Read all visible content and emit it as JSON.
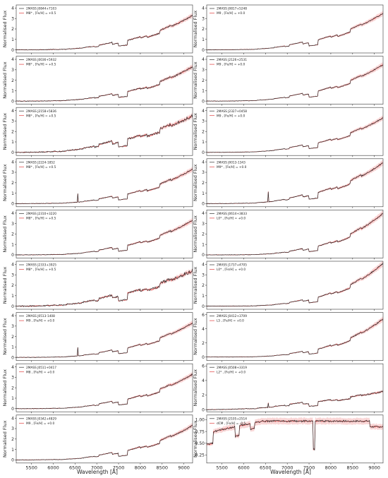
{
  "figure": {
    "xlabel": "Wavelength [Å]",
    "ylabel": "Normalised Flux"
  },
  "chart_data": {
    "type": "line",
    "x_range": [
      5150,
      9200
    ],
    "x_ticks": [
      5500,
      6000,
      6500,
      7000,
      7500,
      8000,
      8500,
      9000
    ],
    "x_tick_labels": [
      "5500",
      "6000",
      "6500",
      "7000",
      "7500",
      "8000",
      "8500",
      "9000"
    ],
    "grid": false,
    "legend_position": "top-left",
    "colors": {
      "observed": "#333333",
      "template": "#e03c3c",
      "template_band": "#f2a3a3"
    },
    "panels": [
      {
        "id": "p0",
        "object": "2MASS J0844+7103",
        "template": "M8* , [Fe/H] = +0.5",
        "ylim": [
          -0.3,
          4.3
        ],
        "yticks": [
          0,
          1,
          2,
          3,
          4
        ],
        "spectrum": {
          "c": "late",
          "scale": 3.3,
          "noise": 0.06
        }
      },
      {
        "id": "p1",
        "object": "2MASS J0817+5248",
        "template": "M9 , [Fe/H] = +0.0",
        "ylim": [
          -0.3,
          4.3
        ],
        "yticks": [
          0,
          1,
          2,
          3,
          4
        ],
        "spectrum": {
          "c": "late",
          "scale": 3.5,
          "noise": 0.04
        }
      },
      {
        "id": "p2",
        "object": "2MASS J0036+5932",
        "template": "M8* , [Fe/H] = +0.5",
        "ylim": [
          -0.3,
          4.3
        ],
        "yticks": [
          0,
          1,
          2,
          3,
          4
        ],
        "spectrum": {
          "c": "late",
          "scale": 3.3,
          "noise": 0.06
        }
      },
      {
        "id": "p3",
        "object": "2MASS J2126+2531",
        "template": "M9 , [Fe/H] = +0.0",
        "ylim": [
          -0.3,
          4.3
        ],
        "yticks": [
          0,
          1,
          2,
          3,
          4
        ],
        "spectrum": {
          "c": "late",
          "scale": 3.5,
          "noise": 0.04
        }
      },
      {
        "id": "p4",
        "object": "2MASS J2158+5836",
        "template": "M8* , [Fe/H] = +0.5",
        "ylim": [
          -0.3,
          4.3
        ],
        "yticks": [
          0,
          1,
          2,
          3,
          4
        ],
        "spectrum": {
          "c": "mid",
          "scale": 3.5,
          "noise": 0.1
        }
      },
      {
        "id": "p5",
        "object": "2MASS J2327+0458",
        "template": "M9 , [Fe/H] = +0.0",
        "ylim": [
          -0.3,
          4.3
        ],
        "yticks": [
          0,
          1,
          2,
          3,
          4
        ],
        "spectrum": {
          "c": "late",
          "scale": 3.3,
          "noise": 0.04
        }
      },
      {
        "id": "p6",
        "object": "2MASS J2224-1852",
        "template": "M8* , [Fe/H] = +0.5",
        "ylim": [
          -0.3,
          4.3
        ],
        "yticks": [
          0,
          1,
          2,
          3,
          4
        ],
        "spectrum": {
          "c": "late",
          "scale": 3.3,
          "noise": 0.05,
          "spike": 6560
        }
      },
      {
        "id": "p7",
        "object": "2MASS J0013-1343",
        "template": "M9* , [Fe/H] = +0.0",
        "ylim": [
          -0.3,
          4.3
        ],
        "yticks": [
          0,
          1,
          2,
          3,
          4
        ],
        "spectrum": {
          "c": "late",
          "scale": 3.9,
          "noise": 0.05,
          "spike": 6560
        }
      },
      {
        "id": "p8",
        "object": "2MASS J2310+3220",
        "template": "M8* , [Fe/H] = +0.5",
        "ylim": [
          -0.3,
          4.3
        ],
        "yticks": [
          0,
          1,
          2,
          3,
          4
        ],
        "spectrum": {
          "c": "late",
          "scale": 3.3,
          "noise": 0.05
        }
      },
      {
        "id": "p9",
        "object": "2MASS J0614+3833",
        "template": "L0* , [Fe/H] = +0.0",
        "ylim": [
          -0.3,
          4.3
        ],
        "yticks": [
          0,
          1,
          2,
          3,
          4
        ],
        "spectrum": {
          "c": "lt",
          "scale": 4.0,
          "noise": 0.05
        }
      },
      {
        "id": "p10",
        "object": "2MASS J2333+3925",
        "template": "M8* , [Fe/H] = +0.5",
        "ylim": [
          -0.3,
          4.3
        ],
        "yticks": [
          0,
          1,
          2,
          3,
          4
        ],
        "spectrum": {
          "c": "mid",
          "scale": 3.4,
          "noise": 0.12
        }
      },
      {
        "id": "p11",
        "object": "2MASS J1737+4705",
        "template": "L0* , [Fe/H] = +0.0",
        "ylim": [
          -0.3,
          4.3
        ],
        "yticks": [
          0,
          1,
          2,
          3,
          4
        ],
        "spectrum": {
          "c": "lt",
          "scale": 4.1,
          "noise": 0.05
        }
      },
      {
        "id": "p12",
        "object": "2MASS J0513-1408",
        "template": "M9 , [Fe/H] = +0.0",
        "ylim": [
          -0.3,
          4.3
        ],
        "yticks": [
          0,
          1,
          2,
          3,
          4
        ],
        "spectrum": {
          "c": "late",
          "scale": 3.3,
          "noise": 0.04,
          "spike": 6560
        }
      },
      {
        "id": "p13",
        "object": "2MASS J0412+3709",
        "template": "L5 , [Fe/H] = +0.0",
        "ylim": [
          -0.5,
          6.3
        ],
        "yticks": [
          0,
          2,
          4,
          6
        ],
        "spectrum": {
          "c": "lt",
          "scale": 5.4,
          "noise": 0.06
        }
      },
      {
        "id": "p14",
        "object": "2MASS J0511+0417",
        "template": "M8 , [Fe/H] = +0.0",
        "ylim": [
          -0.3,
          4.3
        ],
        "yticks": [
          0,
          1,
          2,
          3,
          4
        ],
        "spectrum": {
          "c": "late",
          "scale": 3.3,
          "noise": 0.05
        }
      },
      {
        "id": "p15",
        "object": "2MASS J0508+3319",
        "template": "L2* , [Fe/H] = +0.0",
        "ylim": [
          -0.3,
          6.3
        ],
        "yticks": [
          0,
          2,
          4,
          6
        ],
        "spectrum": {
          "c": "flat",
          "scale": 2.5,
          "noise": 0.08,
          "spike": 6560
        }
      },
      {
        "id": "p16",
        "object": "2MASS J0342+4829",
        "template": "M9 , [Fe/H] = +0.0",
        "ylim": [
          -0.3,
          4.3
        ],
        "yticks": [
          0,
          1,
          2,
          3,
          4
        ],
        "spectrum": {
          "c": "late",
          "scale": 3.3,
          "noise": 0.05
        }
      },
      {
        "id": "p17",
        "object": "2MASS J2105+2514",
        "template": "dCM , [Fe/H] = -0.5",
        "ylim": [
          0.08,
          1.1
        ],
        "yticks": [
          0.25,
          0.5,
          0.75,
          1.0
        ],
        "ytick_labels": [
          "0.25",
          "0.50",
          "0.75",
          "1.00"
        ],
        "spectrum": {
          "c": "dcm",
          "scale": 1,
          "noise": 0.04
        }
      }
    ]
  }
}
